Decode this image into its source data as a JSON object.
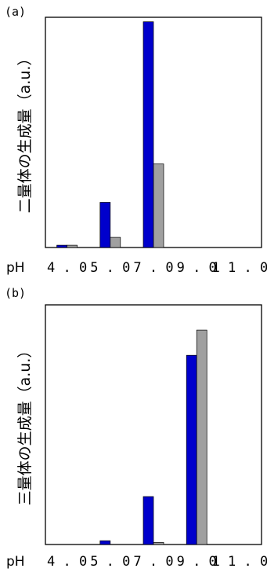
{
  "chart_data": [
    {
      "type": "bar",
      "panel_label": "(a)",
      "ylabel": "二量体の生成量（a.u.）",
      "x_axis_prefix": "pH",
      "categories": [
        "4.0",
        "5.0",
        "7.0",
        "9.0",
        "11.0"
      ],
      "series": [
        {
          "color": "#0000cc",
          "values": [
            1.0,
            20.0,
            100.0,
            0,
            0
          ]
        },
        {
          "color": "#a0a0a0",
          "values": [
            1.0,
            4.5,
            37.0,
            0,
            0
          ]
        }
      ],
      "ylim": [
        0,
        102
      ],
      "grid": false
    },
    {
      "type": "bar",
      "panel_label": "(b)",
      "ylabel": "三量体の生成量（a.u.）",
      "x_axis_prefix": "pH",
      "categories": [
        "4.0",
        "5.0",
        "7.0",
        "9.0",
        "11.0"
      ],
      "series": [
        {
          "color": "#0000cc",
          "values": [
            0,
            1.5,
            19.0,
            75.0,
            0
          ]
        },
        {
          "color": "#a0a0a0",
          "values": [
            0,
            0,
            0.8,
            85.0,
            0
          ]
        }
      ],
      "ylim": [
        0,
        95
      ],
      "grid": false
    }
  ]
}
